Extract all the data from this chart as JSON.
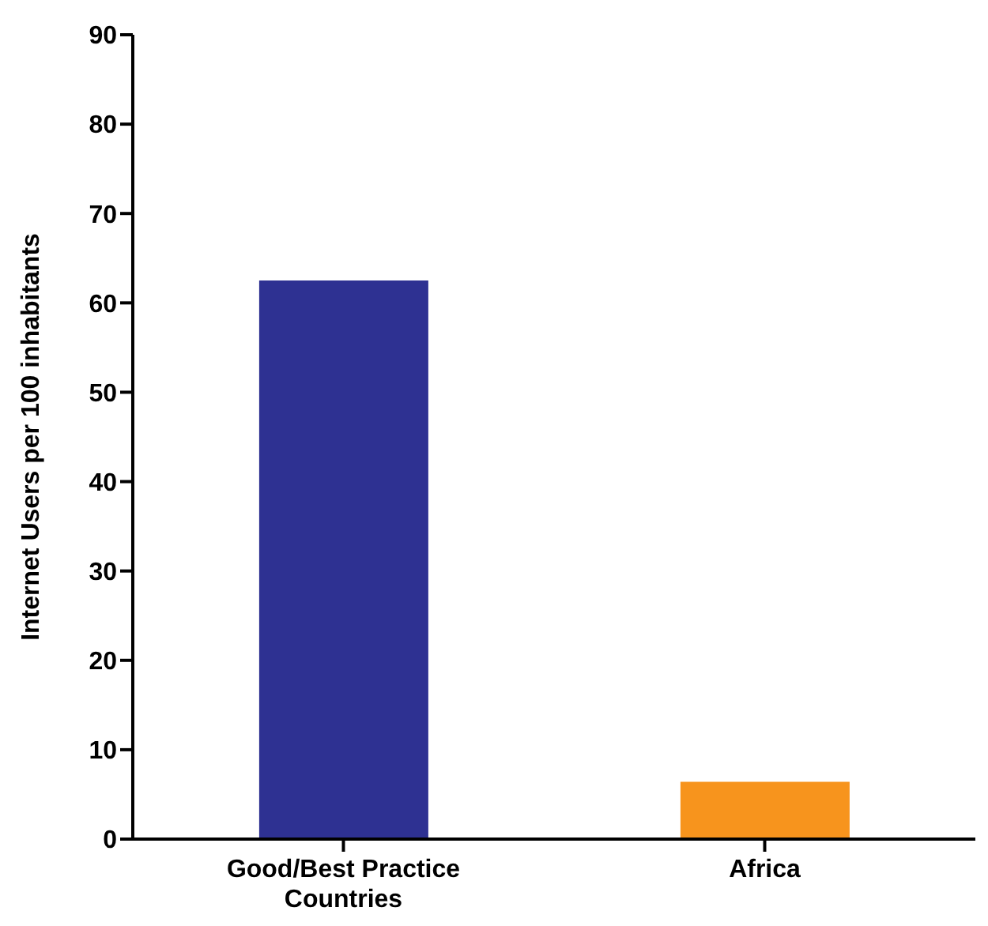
{
  "chart_data": {
    "type": "bar",
    "ylabel": "Internet Users per 100 inhabitants",
    "categories": [
      "Good/Best Practice Countries",
      "Africa"
    ],
    "values": [
      62.5,
      6.4
    ],
    "colors": [
      "#2e3192",
      "#f7941d"
    ],
    "ylim": [
      0,
      90
    ],
    "yticks": [
      0,
      10,
      20,
      30,
      40,
      50,
      60,
      70,
      80,
      90
    ],
    "grid": false,
    "legend": false
  }
}
